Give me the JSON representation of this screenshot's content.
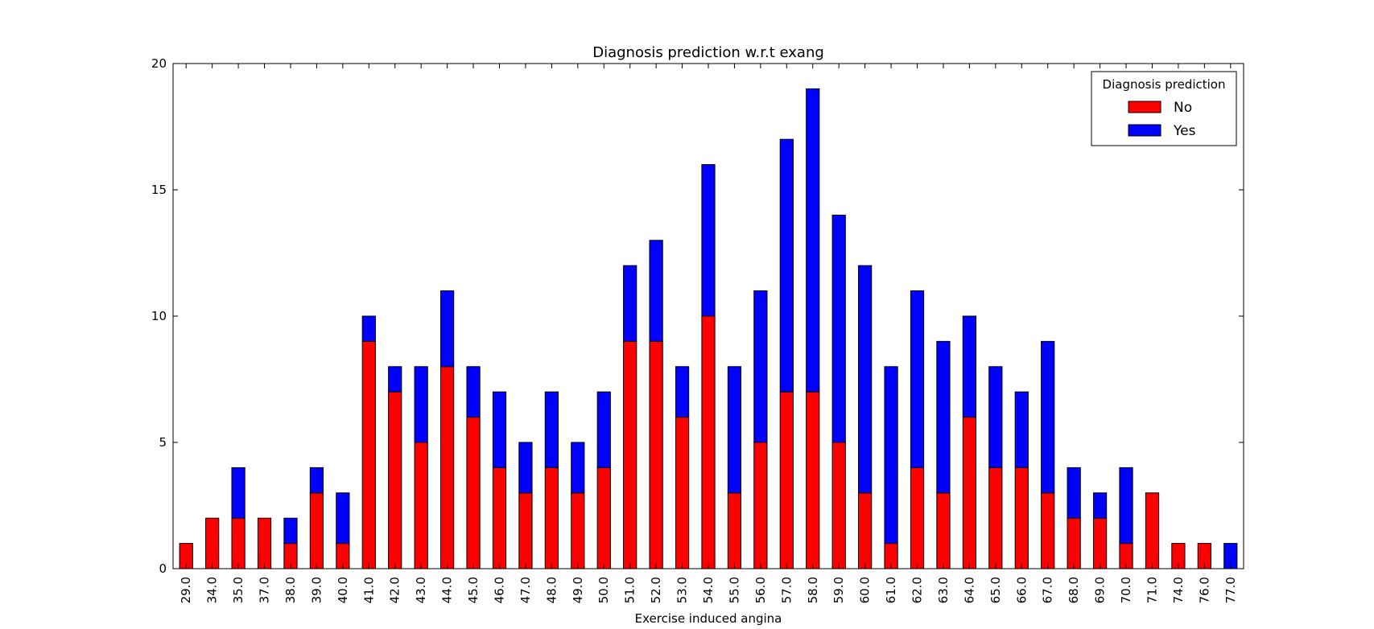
{
  "chart_data": {
    "type": "bar",
    "stacked": true,
    "title": "Diagnosis prediction w.r.t exang",
    "xlabel": "Exercise induced angina",
    "ylabel": "",
    "ylim": [
      0,
      20
    ],
    "yticks": [
      "0",
      "5",
      "10",
      "15",
      "20"
    ],
    "grid": false,
    "legend": {
      "title": "Diagnosis prediction",
      "placement": "top-right"
    },
    "categories": [
      "29.0",
      "34.0",
      "35.0",
      "37.0",
      "38.0",
      "39.0",
      "40.0",
      "41.0",
      "42.0",
      "43.0",
      "44.0",
      "45.0",
      "46.0",
      "47.0",
      "48.0",
      "49.0",
      "50.0",
      "51.0",
      "52.0",
      "53.0",
      "54.0",
      "55.0",
      "56.0",
      "57.0",
      "58.0",
      "59.0",
      "60.0",
      "61.0",
      "62.0",
      "63.0",
      "64.0",
      "65.0",
      "66.0",
      "67.0",
      "68.0",
      "69.0",
      "70.0",
      "71.0",
      "74.0",
      "76.0",
      "77.0"
    ],
    "series": [
      {
        "name": "No",
        "color": "#ff0000",
        "values": [
          1,
          2,
          2,
          2,
          1,
          3,
          1,
          9,
          7,
          5,
          8,
          6,
          4,
          3,
          4,
          3,
          4,
          9,
          9,
          6,
          10,
          3,
          5,
          7,
          7,
          5,
          3,
          1,
          4,
          3,
          6,
          4,
          4,
          3,
          2,
          2,
          1,
          3,
          1,
          1,
          0
        ]
      },
      {
        "name": "Yes",
        "color": "#0000ff",
        "values": [
          0,
          0,
          2,
          0,
          1,
          1,
          2,
          1,
          1,
          3,
          3,
          2,
          3,
          2,
          3,
          2,
          3,
          3,
          4,
          2,
          6,
          5,
          6,
          10,
          12,
          9,
          9,
          7,
          7,
          6,
          4,
          4,
          3,
          6,
          2,
          1,
          3,
          0,
          0,
          0,
          1
        ]
      }
    ]
  }
}
